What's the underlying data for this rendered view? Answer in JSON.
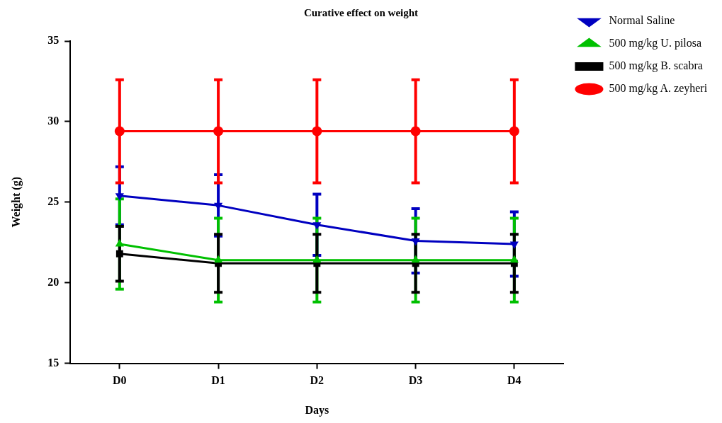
{
  "chart_data": {
    "type": "line",
    "title": "Curative effect on weight",
    "xlabel": "Days",
    "ylabel": "Weight (g)",
    "categories": [
      "D0",
      "D1",
      "D2",
      "D3",
      "D4"
    ],
    "ylim": [
      15,
      35
    ],
    "yticks": [
      15,
      20,
      25,
      30,
      35
    ],
    "legend": "right",
    "line_style": "solid",
    "series": [
      {
        "name": "Normal Saline",
        "color": "#0000c0",
        "marker": "triangle-down",
        "values": [
          25.4,
          24.8,
          23.6,
          22.6,
          22.4
        ],
        "errors": [
          1.8,
          1.9,
          1.9,
          2.0,
          2.0
        ]
      },
      {
        "name": "500 mg/kg U. pilosa",
        "color": "#00c000",
        "marker": "triangle",
        "values": [
          22.4,
          21.4,
          21.4,
          21.4,
          21.4
        ],
        "errors": [
          2.8,
          2.6,
          2.6,
          2.6,
          2.6
        ]
      },
      {
        "name": "500 mg/kg B. scabra",
        "color": "#000000",
        "marker": "square",
        "values": [
          21.8,
          21.2,
          21.2,
          21.2,
          21.2
        ],
        "errors": [
          1.7,
          1.8,
          1.8,
          1.8,
          1.8
        ]
      },
      {
        "name": "500 mg/kg A. zeyheri",
        "color": "#ff0000",
        "marker": "circle",
        "values": [
          29.4,
          29.4,
          29.4,
          29.4,
          29.4
        ],
        "errors": [
          3.2,
          3.2,
          3.2,
          3.2,
          3.2
        ]
      }
    ]
  }
}
